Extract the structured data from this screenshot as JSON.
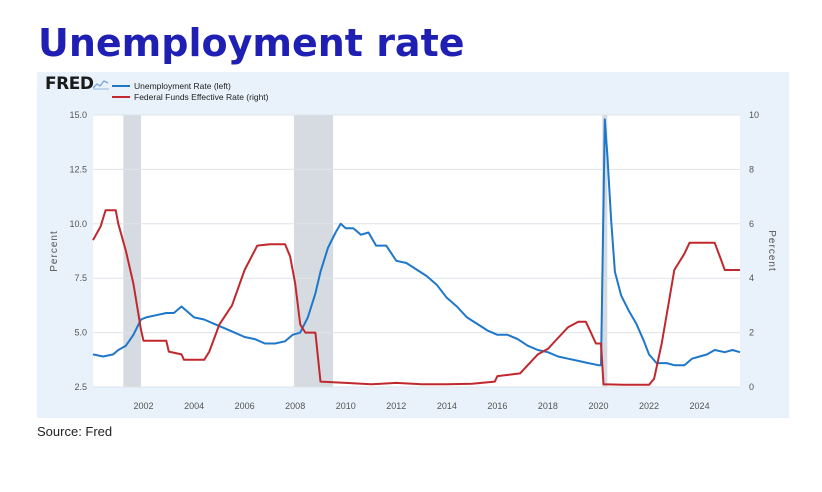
{
  "page": {
    "title": "Unemployment rate",
    "source": "Source: Fred",
    "logo_text": "FRED"
  },
  "chart_data": {
    "type": "line",
    "title": "",
    "xlabel": "",
    "ylabel_left": "Percent",
    "ylabel_right": "Percent",
    "x_tick_labels": [
      "2002",
      "2004",
      "2006",
      "2008",
      "2010",
      "2012",
      "2014",
      "2016",
      "2018",
      "2020",
      "2022",
      "2024"
    ],
    "xlim": [
      2000.0,
      2025.6
    ],
    "y_left_ticks": [
      "2.5",
      "5.0",
      "7.5",
      "10.0",
      "12.5",
      "15.0"
    ],
    "y_left_lim": [
      2.5,
      15.0
    ],
    "y_right_ticks": [
      "0",
      "2",
      "4",
      "6",
      "8",
      "10"
    ],
    "y_right_lim": [
      0,
      10
    ],
    "grid": "horizontal",
    "legend_position": "top-left",
    "recessions": [
      [
        2001.2,
        2001.9
      ],
      [
        2007.95,
        2009.5
      ],
      [
        2020.15,
        2020.35
      ]
    ],
    "recession_color": "#d5dbe1",
    "series": [
      {
        "name": "Unemployment Rate (left)",
        "axis": "left",
        "color": "#1f77c9",
        "points": [
          [
            2000.0,
            4.0
          ],
          [
            2000.4,
            3.9
          ],
          [
            2000.8,
            4.0
          ],
          [
            2001.0,
            4.2
          ],
          [
            2001.3,
            4.4
          ],
          [
            2001.6,
            4.9
          ],
          [
            2001.9,
            5.6
          ],
          [
            2002.1,
            5.7
          ],
          [
            2002.5,
            5.8
          ],
          [
            2002.9,
            5.9
          ],
          [
            2003.2,
            5.9
          ],
          [
            2003.5,
            6.2
          ],
          [
            2003.8,
            5.9
          ],
          [
            2004.0,
            5.7
          ],
          [
            2004.4,
            5.6
          ],
          [
            2004.8,
            5.4
          ],
          [
            2005.2,
            5.2
          ],
          [
            2005.6,
            5.0
          ],
          [
            2006.0,
            4.8
          ],
          [
            2006.4,
            4.7
          ],
          [
            2006.8,
            4.5
          ],
          [
            2007.2,
            4.5
          ],
          [
            2007.6,
            4.6
          ],
          [
            2007.9,
            4.9
          ],
          [
            2008.2,
            5.0
          ],
          [
            2008.5,
            5.7
          ],
          [
            2008.8,
            6.8
          ],
          [
            2009.0,
            7.8
          ],
          [
            2009.3,
            8.9
          ],
          [
            2009.6,
            9.6
          ],
          [
            2009.8,
            10.0
          ],
          [
            2010.0,
            9.8
          ],
          [
            2010.3,
            9.8
          ],
          [
            2010.6,
            9.5
          ],
          [
            2010.9,
            9.6
          ],
          [
            2011.2,
            9.0
          ],
          [
            2011.6,
            9.0
          ],
          [
            2012.0,
            8.3
          ],
          [
            2012.4,
            8.2
          ],
          [
            2012.8,
            7.9
          ],
          [
            2013.2,
            7.6
          ],
          [
            2013.6,
            7.2
          ],
          [
            2014.0,
            6.6
          ],
          [
            2014.4,
            6.2
          ],
          [
            2014.8,
            5.7
          ],
          [
            2015.2,
            5.4
          ],
          [
            2015.6,
            5.1
          ],
          [
            2016.0,
            4.9
          ],
          [
            2016.4,
            4.9
          ],
          [
            2016.8,
            4.7
          ],
          [
            2017.2,
            4.4
          ],
          [
            2017.6,
            4.2
          ],
          [
            2018.0,
            4.1
          ],
          [
            2018.4,
            3.9
          ],
          [
            2018.8,
            3.8
          ],
          [
            2019.2,
            3.7
          ],
          [
            2019.6,
            3.6
          ],
          [
            2020.0,
            3.5
          ],
          [
            2020.1,
            3.5
          ],
          [
            2020.25,
            14.8
          ],
          [
            2020.35,
            13.2
          ],
          [
            2020.5,
            10.2
          ],
          [
            2020.65,
            7.8
          ],
          [
            2020.9,
            6.7
          ],
          [
            2021.2,
            6.0
          ],
          [
            2021.5,
            5.4
          ],
          [
            2021.8,
            4.6
          ],
          [
            2022.0,
            4.0
          ],
          [
            2022.3,
            3.6
          ],
          [
            2022.7,
            3.6
          ],
          [
            2023.0,
            3.5
          ],
          [
            2023.4,
            3.5
          ],
          [
            2023.7,
            3.8
          ],
          [
            2024.0,
            3.9
          ],
          [
            2024.3,
            4.0
          ],
          [
            2024.6,
            4.2
          ],
          [
            2025.0,
            4.1
          ],
          [
            2025.3,
            4.2
          ],
          [
            2025.6,
            4.1
          ]
        ]
      },
      {
        "name": "Federal Funds Effective Rate (right)",
        "axis": "right",
        "color": "#c0282d",
        "points": [
          [
            2000.0,
            5.4
          ],
          [
            2000.3,
            5.9
          ],
          [
            2000.5,
            6.5
          ],
          [
            2000.9,
            6.5
          ],
          [
            2001.0,
            6.0
          ],
          [
            2001.3,
            5.0
          ],
          [
            2001.6,
            3.8
          ],
          [
            2001.9,
            2.1
          ],
          [
            2002.0,
            1.7
          ],
          [
            2002.5,
            1.7
          ],
          [
            2002.9,
            1.7
          ],
          [
            2003.0,
            1.3
          ],
          [
            2003.5,
            1.2
          ],
          [
            2003.6,
            1.0
          ],
          [
            2004.4,
            1.0
          ],
          [
            2004.6,
            1.3
          ],
          [
            2005.0,
            2.3
          ],
          [
            2005.5,
            3.0
          ],
          [
            2006.0,
            4.3
          ],
          [
            2006.5,
            5.2
          ],
          [
            2007.0,
            5.25
          ],
          [
            2007.6,
            5.25
          ],
          [
            2007.8,
            4.8
          ],
          [
            2008.0,
            3.8
          ],
          [
            2008.2,
            2.3
          ],
          [
            2008.4,
            2.0
          ],
          [
            2008.8,
            2.0
          ],
          [
            2009.0,
            0.2
          ],
          [
            2010.0,
            0.15
          ],
          [
            2011.0,
            0.1
          ],
          [
            2012.0,
            0.15
          ],
          [
            2013.0,
            0.1
          ],
          [
            2014.0,
            0.1
          ],
          [
            2015.0,
            0.12
          ],
          [
            2015.9,
            0.2
          ],
          [
            2016.0,
            0.4
          ],
          [
            2016.9,
            0.5
          ],
          [
            2017.2,
            0.8
          ],
          [
            2017.6,
            1.2
          ],
          [
            2018.0,
            1.4
          ],
          [
            2018.4,
            1.8
          ],
          [
            2018.8,
            2.2
          ],
          [
            2019.2,
            2.4
          ],
          [
            2019.5,
            2.4
          ],
          [
            2019.7,
            2.0
          ],
          [
            2019.9,
            1.6
          ],
          [
            2020.1,
            1.6
          ],
          [
            2020.2,
            0.1
          ],
          [
            2021.0,
            0.08
          ],
          [
            2022.0,
            0.08
          ],
          [
            2022.2,
            0.3
          ],
          [
            2022.5,
            1.6
          ],
          [
            2022.8,
            3.2
          ],
          [
            2023.0,
            4.3
          ],
          [
            2023.4,
            4.9
          ],
          [
            2023.6,
            5.3
          ],
          [
            2024.6,
            5.3
          ],
          [
            2024.8,
            4.8
          ],
          [
            2025.0,
            4.3
          ],
          [
            2025.6,
            4.3
          ]
        ]
      }
    ]
  }
}
